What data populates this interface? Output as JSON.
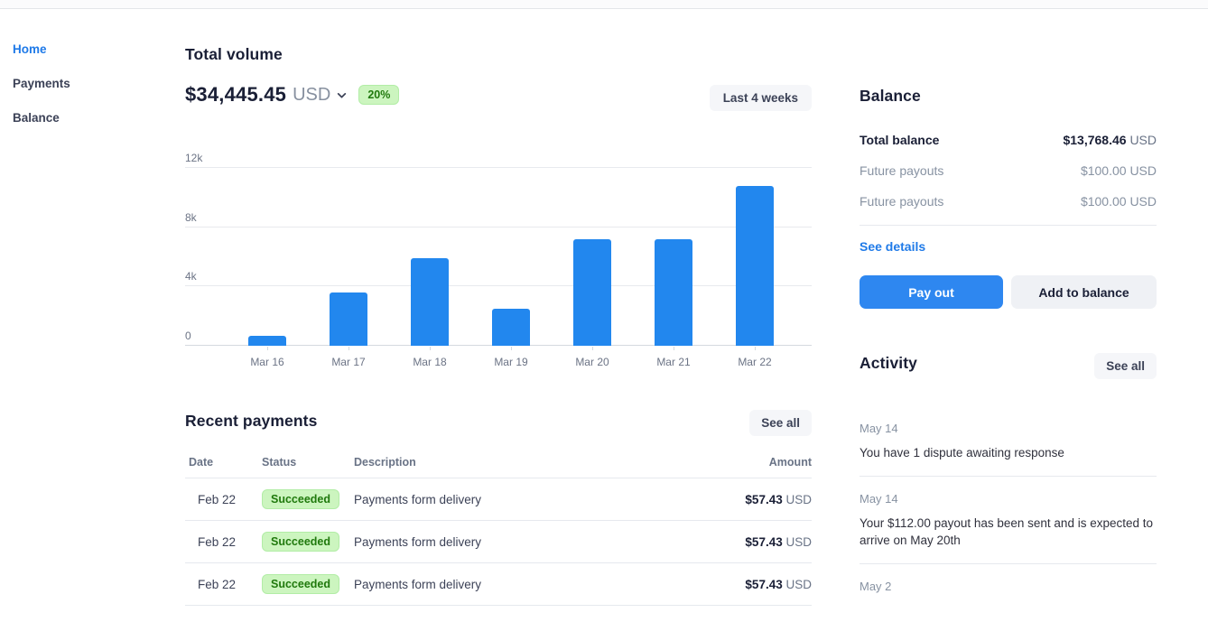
{
  "sidebar": {
    "items": [
      {
        "label": "Home",
        "active": true
      },
      {
        "label": "Payments",
        "active": false
      },
      {
        "label": "Balance",
        "active": false
      }
    ]
  },
  "total_volume": {
    "title": "Total volume",
    "amount": "$34,445.45",
    "currency": "USD",
    "change": "20%",
    "range_label": "Last 4 weeks"
  },
  "chart_data": {
    "type": "bar",
    "title": "Total volume",
    "categories": [
      "Mar 16",
      "Mar 17",
      "Mar 18",
      "Mar 19",
      "Mar 20",
      "Mar 21",
      "Mar 22"
    ],
    "values": [
      700,
      3600,
      5900,
      2500,
      7200,
      7200,
      10800
    ],
    "xlabel": "",
    "ylabel": "",
    "ylim": [
      0,
      12000
    ],
    "yticks": [
      0,
      4000,
      8000,
      12000
    ],
    "ytick_labels": [
      "0",
      "4k",
      "8k",
      "12k"
    ],
    "grid": "horizontal",
    "legend": false,
    "bar_color": "#2287ee"
  },
  "recent_payments": {
    "title": "Recent payments",
    "see_all_label": "See all",
    "columns": [
      "Date",
      "Status",
      "Description",
      "Amount"
    ],
    "rows": [
      {
        "date": "Feb 22",
        "status": "Succeeded",
        "description": "Payments form delivery",
        "amount": "$57.43",
        "currency": "USD"
      },
      {
        "date": "Feb 22",
        "status": "Succeeded",
        "description": "Payments form delivery",
        "amount": "$57.43",
        "currency": "USD"
      },
      {
        "date": "Feb 22",
        "status": "Succeeded",
        "description": "Payments form delivery",
        "amount": "$57.43",
        "currency": "USD"
      }
    ]
  },
  "balance": {
    "title": "Balance",
    "rows": [
      {
        "label": "Total balance",
        "amount": "$13,768.46",
        "currency": "USD",
        "emphasis": true
      },
      {
        "label": "Future payouts",
        "amount": "$100.00",
        "currency": "USD",
        "emphasis": false
      },
      {
        "label": "Future payouts",
        "amount": "$100.00",
        "currency": "USD",
        "emphasis": false
      }
    ],
    "see_details_label": "See details",
    "payout_button_label": "Pay out",
    "add_balance_button_label": "Add to balance"
  },
  "activity": {
    "title": "Activity",
    "see_all_label": "See all",
    "items": [
      {
        "date": "May 14",
        "text": "You have 1 dispute awaiting response"
      },
      {
        "date": "May 14",
        "text": "Your $112.00 payout has been sent and is expected to arrive on May 20th"
      },
      {
        "date": "May 2",
        "text": ""
      }
    ]
  },
  "colors": {
    "bar_blue": "#2287ee",
    "button_blue": "#2e87f0",
    "link_blue": "#1f7ae8",
    "badge_green_bg": "#ccf5bf",
    "badge_green_text": "#20790d",
    "text_dark": "#1a1f36",
    "text_gray": "#697386"
  }
}
